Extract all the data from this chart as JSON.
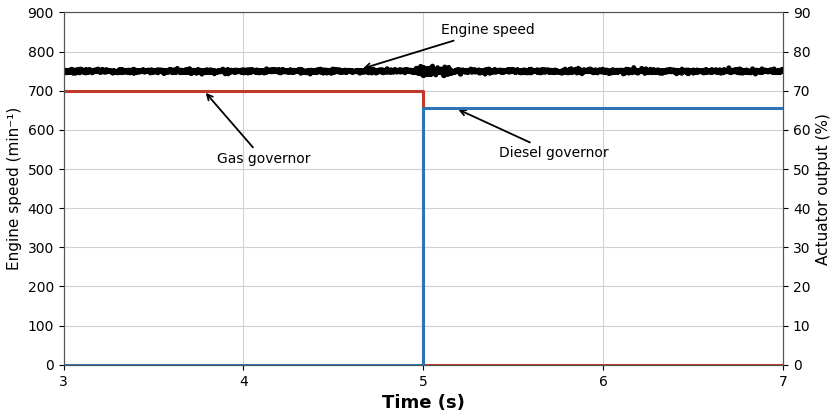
{
  "title": "",
  "xlabel": "Time (s)",
  "ylabel_left": "Engine speed (min⁻¹)",
  "ylabel_right": "Actuator output (%)",
  "xlim": [
    3,
    7
  ],
  "ylim_left": [
    0,
    900
  ],
  "ylim_right": [
    0,
    90
  ],
  "yticks_left": [
    0,
    100,
    200,
    300,
    400,
    500,
    600,
    700,
    800,
    900
  ],
  "yticks_right": [
    0,
    10,
    20,
    30,
    40,
    50,
    60,
    70,
    80,
    90
  ],
  "xticks": [
    3,
    4,
    5,
    6,
    7
  ],
  "engine_speed_color": "#000000",
  "gas_governor_color": "#C0392B",
  "diesel_governor_color": "#2E75B6",
  "engine_speed_value": 750,
  "gas_governor_before": 700,
  "gas_governor_after": 0,
  "diesel_governor_before": 0,
  "diesel_governor_after": 655,
  "switch_time": 5.0,
  "background_color": "#ffffff",
  "grid_color": "#d0d0d0",
  "linewidth_governor": 2.2,
  "linewidth_engine": 3.5
}
